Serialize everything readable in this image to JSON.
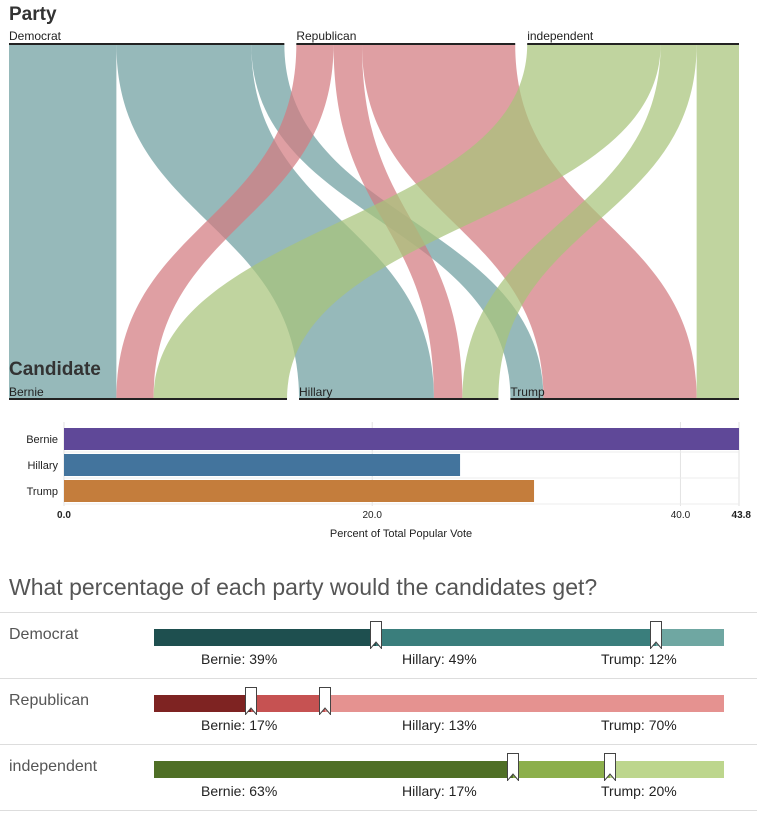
{
  "party_section": {
    "title": "Party",
    "nodes": [
      "Democrat",
      "Republican",
      "independent"
    ]
  },
  "candidate_section": {
    "title": "Candidate",
    "nodes": [
      "Bernie",
      "Hillary",
      "Trump"
    ]
  },
  "colors": {
    "democrat_flow": "#6e9ea0",
    "republican_flow": "#d27a80",
    "independent_flow": "#a8c37a",
    "bernie_bar": "#5f4898",
    "hillary_bar": "#43749d",
    "trump_bar": "#c47d3c",
    "democrat_slider": [
      "#1e4f4f",
      "#3a7e7c",
      "#6fa7a2"
    ],
    "republican_slider": [
      "#7e2322",
      "#c65252",
      "#e59290"
    ],
    "independent_slider": [
      "#4f6f26",
      "#8caf4b",
      "#bdd68d"
    ]
  },
  "question": {
    "title": "What percentage of each party would the candidates get?"
  },
  "rows": [
    {
      "party": "Democrat",
      "items": [
        {
          "label": "Bernie: ",
          "value": 39,
          "text": "39%"
        },
        {
          "label": "Hillary: ",
          "value": 49,
          "text": "49%"
        },
        {
          "label": "Trump: ",
          "value": 12,
          "text": "12%"
        }
      ]
    },
    {
      "party": "Republican",
      "items": [
        {
          "label": "Bernie: ",
          "value": 17,
          "text": "17%"
        },
        {
          "label": "Hillary: ",
          "value": 13,
          "text": "13%"
        },
        {
          "label": "Trump: ",
          "value": 70,
          "text": "70%"
        }
      ]
    },
    {
      "party": "independent",
      "items": [
        {
          "label": "Bernie: ",
          "value": 63,
          "text": "63%"
        },
        {
          "label": "Hillary: ",
          "value": 17,
          "text": "17%"
        },
        {
          "label": "Trump: ",
          "value": 20,
          "text": "20%"
        }
      ]
    }
  ],
  "chart_data": [
    {
      "type": "sankey",
      "title": "Party",
      "sources": [
        "Democrat",
        "Republican",
        "independent"
      ],
      "targets": [
        "Bernie",
        "Hillary",
        "Trump"
      ],
      "source_shares": [
        39,
        31,
        30
      ],
      "flows": [
        {
          "from": "Democrat",
          "to": "Bernie",
          "percent": 39
        },
        {
          "from": "Democrat",
          "to": "Hillary",
          "percent": 49
        },
        {
          "from": "Democrat",
          "to": "Trump",
          "percent": 12
        },
        {
          "from": "Republican",
          "to": "Bernie",
          "percent": 17
        },
        {
          "from": "Republican",
          "to": "Hillary",
          "percent": 13
        },
        {
          "from": "Republican",
          "to": "Trump",
          "percent": 70
        },
        {
          "from": "independent",
          "to": "Bernie",
          "percent": 63
        },
        {
          "from": "independent",
          "to": "Hillary",
          "percent": 17
        },
        {
          "from": "independent",
          "to": "Trump",
          "percent": 20
        }
      ]
    },
    {
      "type": "bar",
      "orientation": "horizontal",
      "categories": [
        "Bernie",
        "Hillary",
        "Trump"
      ],
      "values": [
        43.8,
        25.7,
        30.5
      ],
      "xlabel": "Percent of Total Popular Vote",
      "xlim": [
        0,
        43.8
      ],
      "ticks": [
        "0.0",
        "20.0",
        "40.0",
        "43.8"
      ],
      "tick_values": [
        0,
        20,
        40,
        43.8
      ],
      "grid": true
    }
  ]
}
